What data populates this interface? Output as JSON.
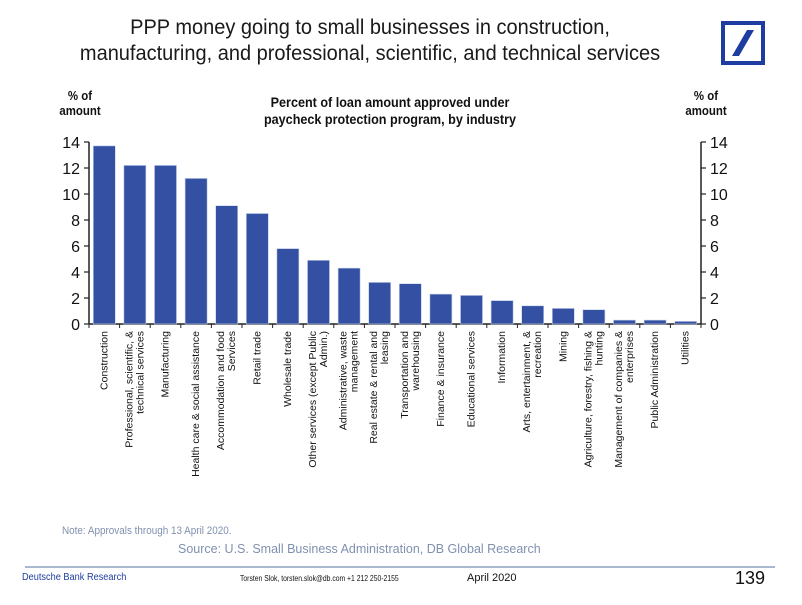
{
  "header": {
    "title_line1": "PPP money going to small businesses in construction,",
    "title_line2": "manufacturing, and professional, scientific, and technical services",
    "logo": "deutsche-bank-logo"
  },
  "colors": {
    "bar": "#3350a3",
    "logo": "#1f3da0",
    "note": "#8090b0"
  },
  "chart_data": {
    "type": "bar",
    "title": "Percent of loan amount approved under paycheck protection program, by industry",
    "title_line1": "Percent of loan amount approved under",
    "title_line2": "paycheck protection program, by industry",
    "ylabel_left": "% of amount",
    "ylabel_left_line1": "% of",
    "ylabel_left_line2": "amount",
    "ylabel_right": "% of amount",
    "ylabel_right_line1": "% of",
    "ylabel_right_line2": "amount",
    "ylim": [
      0,
      14
    ],
    "yticks": [
      0,
      2,
      4,
      6,
      8,
      10,
      12,
      14
    ],
    "grid": false,
    "categories": [
      "Construction",
      "Professional, scientific, & technical services",
      "Manufacturing",
      "Health care & social assistance",
      "Accommodation and food Services",
      "Retail trade",
      "Wholesale trade",
      "Other services (except Public Admin.)",
      "Administrative, waste management",
      "Real estate & rental and leasing",
      "Transportation and warehousing",
      "Finance & insurance",
      "Educational services",
      "Information",
      "Arts, entertainment, & recreation",
      "Mining",
      "Agriculture, forestry, fishing & hunting",
      "Management of companies & enterprises",
      "Public Administration",
      "Utilities"
    ],
    "category_lines": [
      [
        "Construction"
      ],
      [
        "Professional, scientific, &",
        "technical services"
      ],
      [
        "Manufacturing"
      ],
      [
        "Health care & social assistance"
      ],
      [
        "Accommodation and food",
        "Services"
      ],
      [
        "Retail trade"
      ],
      [
        "Wholesale trade"
      ],
      [
        "Other services (except Public",
        "Admin.)"
      ],
      [
        "Administrative, waste",
        "management"
      ],
      [
        "Real estate & rental and",
        "leasing"
      ],
      [
        "Transportation and",
        "warehousing"
      ],
      [
        "Finance & insurance"
      ],
      [
        "Educational services"
      ],
      [
        "Information"
      ],
      [
        "Arts, entertainment, &",
        "recreation"
      ],
      [
        "Mining"
      ],
      [
        "Agriculture, forestry, fishing &",
        "hunting"
      ],
      [
        "Management of companies &",
        "enterprises"
      ],
      [
        "Public Administration"
      ],
      [
        "Utilities"
      ]
    ],
    "values": [
      13.7,
      12.2,
      12.2,
      11.2,
      9.1,
      8.5,
      5.8,
      4.9,
      4.3,
      3.2,
      3.1,
      2.3,
      2.2,
      1.8,
      1.4,
      1.2,
      1.1,
      0.3,
      0.3,
      0.2
    ]
  },
  "notes": {
    "note": "Note: Approvals through 13 April 2020.",
    "source": "Source:  U.S. Small Business Administration, DB Global Research"
  },
  "footer": {
    "brand": "Deutsche Bank Research",
    "author": "Torsten Slok, torsten.slok@db.com  +1 212 250-2155",
    "date": "April 2020",
    "page": "139"
  }
}
